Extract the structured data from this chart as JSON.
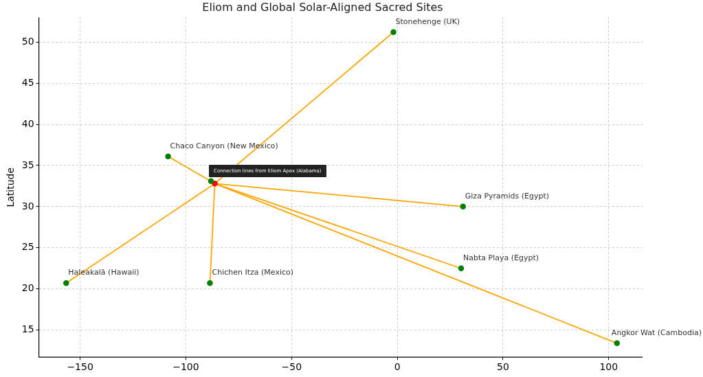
{
  "chart_data": {
    "type": "scatter",
    "title": "Eliom and Global Solar-Aligned Sacred Sites",
    "ylabel": "Latitude",
    "xlim": [
      -169.5,
      116
    ],
    "ylim": [
      11.7,
      53
    ],
    "xticks": [
      {
        "value": -150,
        "label": "−150"
      },
      {
        "value": -100,
        "label": "−100"
      },
      {
        "value": -50,
        "label": "−50"
      },
      0,
      50,
      100
    ],
    "yticks": [
      15,
      20,
      25,
      30,
      35,
      40,
      45,
      50
    ],
    "grid": true,
    "legend": false,
    "series": [
      {
        "type": "line",
        "color": "#ffa500",
        "marker": "none",
        "x": [
          -86.3,
          -1.8
        ],
        "values": [
          32.8,
          51.2
        ]
      },
      {
        "type": "line",
        "color": "#ffa500",
        "marker": "none",
        "x": [
          -86.3,
          -108.4
        ],
        "values": [
          32.8,
          36.1
        ]
      },
      {
        "type": "line",
        "color": "#ffa500",
        "marker": "none",
        "x": [
          -86.3,
          31.1
        ],
        "values": [
          32.8,
          30.0
        ]
      },
      {
        "type": "line",
        "color": "#ffa500",
        "marker": "none",
        "x": [
          -86.3,
          30.2
        ],
        "values": [
          32.8,
          22.5
        ]
      },
      {
        "type": "line",
        "color": "#ffa500",
        "marker": "none",
        "x": [
          -86.3,
          103.9
        ],
        "values": [
          32.8,
          13.4
        ]
      },
      {
        "type": "line",
        "color": "#ffa500",
        "marker": "none",
        "x": [
          -86.3,
          -156.6
        ],
        "values": [
          32.8,
          20.7
        ]
      },
      {
        "type": "line",
        "color": "#ffa500",
        "marker": "none",
        "x": [
          -86.3,
          -88.6
        ],
        "values": [
          32.8,
          20.7
        ]
      },
      {
        "type": "scatter",
        "color": "#008000",
        "marker": "circle",
        "x": [
          -1.8,
          -108.4,
          -88.1,
          31.1,
          30.2,
          103.9,
          -156.6,
          -88.6
        ],
        "values": [
          51.2,
          36.1,
          33.1,
          30.0,
          22.5,
          13.4,
          20.7,
          20.7
        ]
      },
      {
        "type": "scatter",
        "color": "#ff0000",
        "marker": "circle",
        "x": [
          -86.3
        ],
        "values": [
          32.8
        ]
      }
    ],
    "annotations": [
      {
        "text": "Stonehenge (UK)",
        "x": -1.8,
        "y": 51.2
      },
      {
        "text": "Chaco Canyon (New Mexico)",
        "x": -108.4,
        "y": 36.1
      },
      {
        "text": "Giza Pyramids (Egypt)",
        "x": 31.1,
        "y": 30.0
      },
      {
        "text": "Nabta Playa (Egypt)",
        "x": 30.2,
        "y": 22.5
      },
      {
        "text": "Angkor Wat (Cambodia)",
        "x": 103.9,
        "y": 13.4
      },
      {
        "text": "Haleakalā (Hawaii)",
        "x": -156.6,
        "y": 20.7
      },
      {
        "text": "Chichen Itza (Mexico)",
        "x": -88.6,
        "y": 20.7
      },
      "Connection lines from Eliom Apex (Alabama)"
    ]
  }
}
